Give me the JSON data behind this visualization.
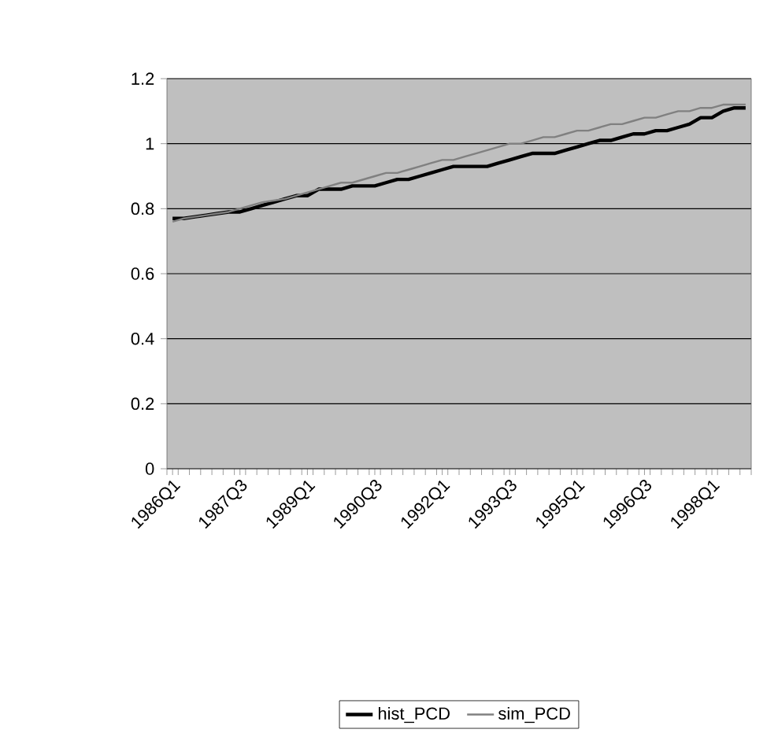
{
  "chart_data": {
    "type": "line",
    "categories": [
      "1986Q1",
      null,
      null,
      null,
      null,
      null,
      "1987Q3",
      null,
      null,
      null,
      null,
      null,
      "1989Q1",
      null,
      null,
      null,
      null,
      null,
      "1990Q3",
      null,
      null,
      null,
      null,
      null,
      "1992Q1",
      null,
      null,
      null,
      null,
      null,
      "1993Q3",
      null,
      null,
      null,
      null,
      null,
      "1995Q1",
      null,
      null,
      null,
      null,
      null,
      "1996Q3",
      null,
      null,
      null,
      null,
      null,
      "1998Q1",
      null,
      null,
      null
    ],
    "series": [
      {
        "name": "hist_PCD",
        "color": "#000000",
        "values": [
          0.77,
          0.77,
          0.775,
          0.78,
          0.785,
          0.79,
          0.79,
          0.8,
          0.81,
          0.82,
          0.83,
          0.84,
          0.84,
          0.86,
          0.86,
          0.86,
          0.87,
          0.87,
          0.87,
          0.88,
          0.89,
          0.89,
          0.9,
          0.91,
          0.92,
          0.93,
          0.93,
          0.93,
          0.93,
          0.94,
          0.95,
          0.96,
          0.97,
          0.97,
          0.97,
          0.98,
          0.99,
          1.0,
          1.01,
          1.01,
          1.02,
          1.03,
          1.03,
          1.04,
          1.04,
          1.05,
          1.06,
          1.08,
          1.08,
          1.1,
          1.11,
          1.11
        ]
      },
      {
        "name": "sim_PCD",
        "color": "#808080",
        "values": [
          0.76,
          0.77,
          0.775,
          0.78,
          0.785,
          0.79,
          0.8,
          0.81,
          0.82,
          0.825,
          0.83,
          0.84,
          0.85,
          0.86,
          0.87,
          0.88,
          0.88,
          0.89,
          0.9,
          0.91,
          0.91,
          0.92,
          0.93,
          0.94,
          0.95,
          0.95,
          0.96,
          0.97,
          0.98,
          0.99,
          1.0,
          1.0,
          1.01,
          1.02,
          1.02,
          1.03,
          1.04,
          1.04,
          1.05,
          1.06,
          1.06,
          1.07,
          1.08,
          1.08,
          1.09,
          1.1,
          1.1,
          1.11,
          1.11,
          1.12,
          1.12,
          1.12
        ]
      }
    ],
    "ylim": [
      0,
      1.2
    ],
    "yticks": [
      0,
      0.2,
      0.4,
      0.6,
      0.8,
      1,
      1.2
    ],
    "grid": "y",
    "legend": "bottom"
  }
}
